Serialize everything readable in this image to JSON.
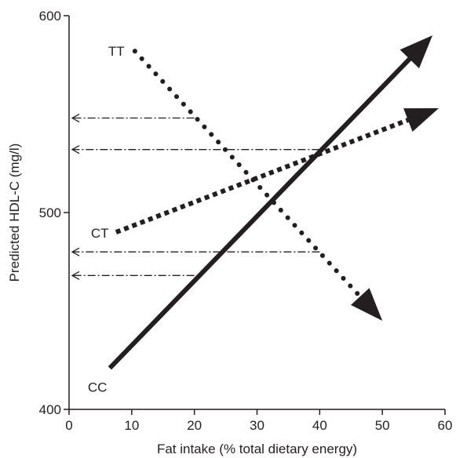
{
  "chart_data": {
    "type": "line",
    "xlabel": "Fat intake (% total dietary energy)",
    "ylabel": "Predicted HDL-C (mg/l)",
    "xlim": [
      0,
      60
    ],
    "ylim": [
      400,
      600
    ],
    "x_ticks": [
      0,
      10,
      20,
      30,
      40,
      50,
      60
    ],
    "y_ticks": [
      400,
      500,
      600
    ],
    "grid": false,
    "legend": "none",
    "series": [
      {
        "name": "CC",
        "style": "solid",
        "color": "#231f20",
        "x": [
          6.5,
          58
        ],
        "y": [
          421,
          590
        ]
      },
      {
        "name": "CT",
        "style": "dotted",
        "color": "#231f20",
        "x": [
          7.5,
          59
        ],
        "y": [
          490,
          553
        ]
      },
      {
        "name": "TT",
        "style": "dotted",
        "color": "#231f20",
        "x": [
          10.5,
          50
        ],
        "y": [
          582,
          445
        ]
      }
    ],
    "reference_lines": [
      {
        "x_from": 20,
        "x_to": 0,
        "y": 548
      },
      {
        "x_from": 40,
        "x_to": 0,
        "y": 532
      },
      {
        "x_from": 40,
        "x_to": 0,
        "y": 480
      },
      {
        "x_from": 20,
        "x_to": 0,
        "y": 468
      }
    ]
  }
}
